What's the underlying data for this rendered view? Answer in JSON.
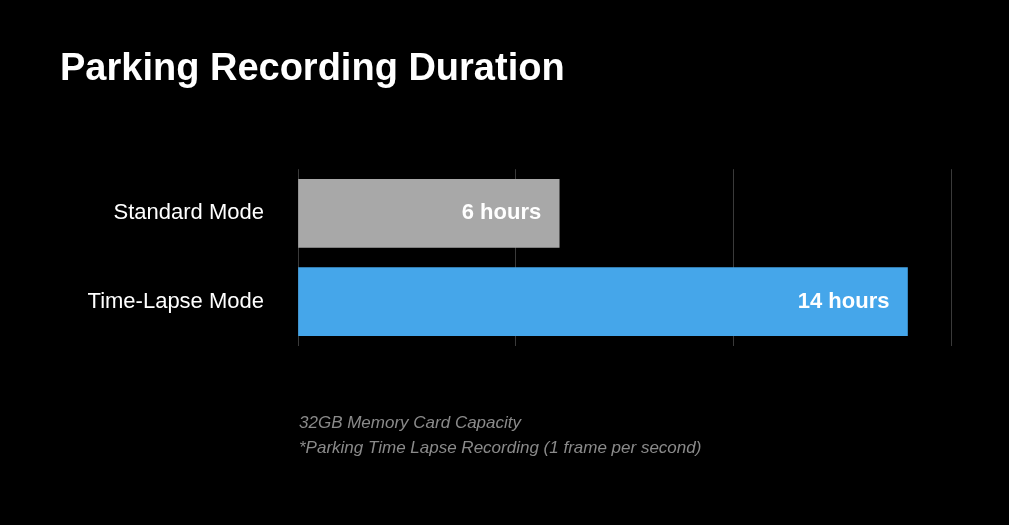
{
  "chart_data": {
    "type": "bar",
    "orientation": "horizontal",
    "title": "Parking Recording Duration",
    "categories": [
      "Standard Mode",
      "Time-Lapse Mode"
    ],
    "values": [
      6,
      14
    ],
    "colors": [
      "#a8a8a8",
      "#45a6ea"
    ],
    "value_labels": [
      "6 hours",
      "14 hours"
    ],
    "xlim": [
      0,
      15
    ],
    "xticks": [
      {
        "value": 0,
        "label": null
      },
      {
        "value": 5,
        "label": null
      },
      {
        "value": 10,
        "label": null
      },
      {
        "value": 15,
        "label": null
      }
    ],
    "tick_labels": "y",
    "grid": "x",
    "legend": false,
    "annotations": [
      "32GB Memory Card Capacity",
      "*Parking Time Lapse Recording (1 frame per second)"
    ]
  }
}
